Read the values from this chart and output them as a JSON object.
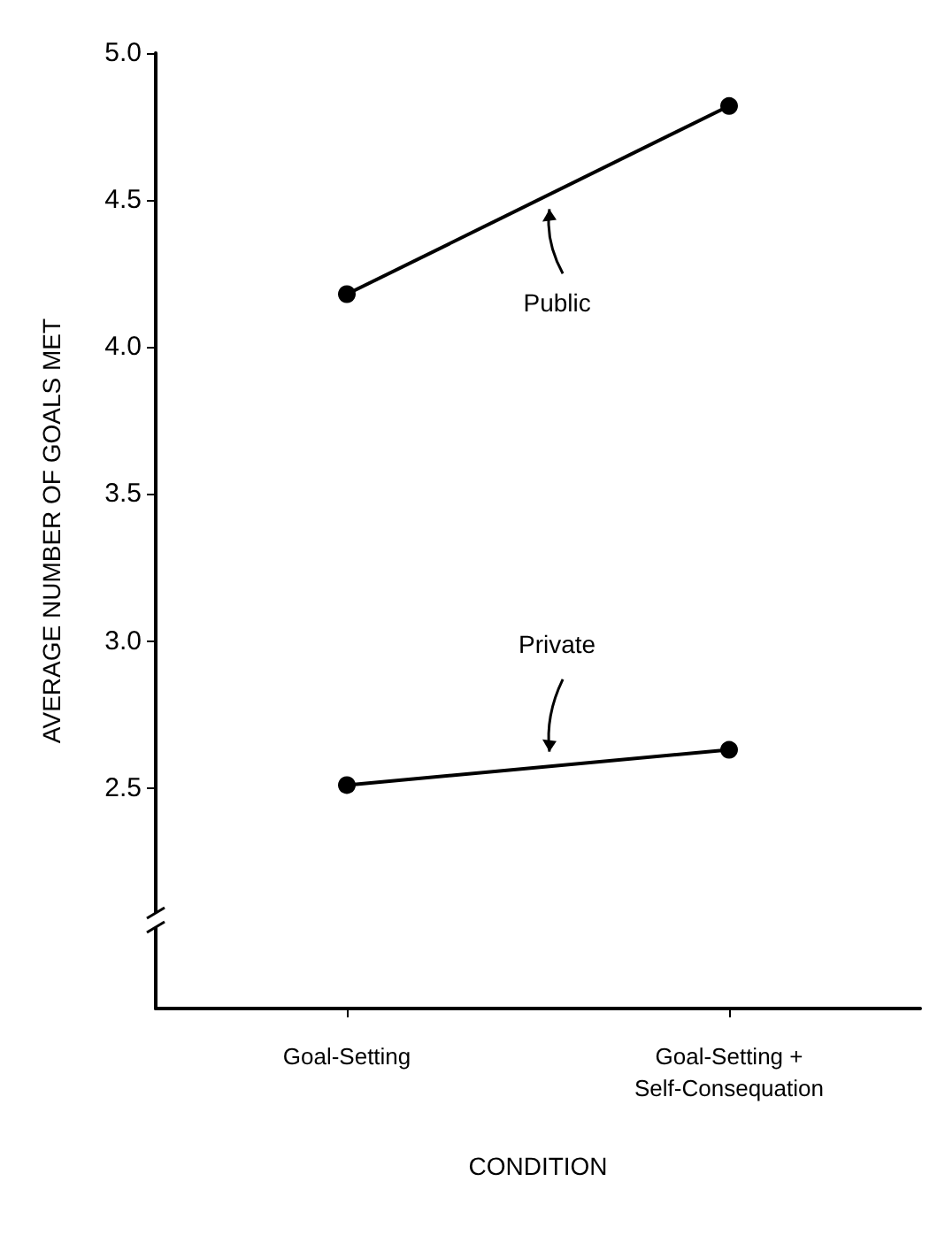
{
  "chart_data": {
    "type": "line",
    "xlabel": "CONDITION",
    "ylabel": "AVERAGE NUMBER OF GOALS MET",
    "categories": [
      "Goal-Setting",
      "Goal-Setting +\nSelf-Consequation"
    ],
    "series": [
      {
        "name": "Public",
        "color": "#000000",
        "values": [
          4.18,
          4.82
        ]
      },
      {
        "name": "Private",
        "color": "#000000",
        "values": [
          2.51,
          2.63
        ]
      }
    ],
    "ylim": [
      1.75,
      5.0
    ],
    "yticks": [
      {
        "value": 2.5,
        "label": "2.5"
      },
      {
        "value": 3.0,
        "label": "3.0"
      },
      {
        "value": 3.5,
        "label": "3.5"
      },
      {
        "value": 4.0,
        "label": "4.0"
      },
      {
        "value": 4.5,
        "label": "4.5"
      },
      {
        "value": 5.0,
        "label": "5.0"
      }
    ],
    "grid": false,
    "legend": false,
    "marker": "circle",
    "line_style": "solid"
  }
}
